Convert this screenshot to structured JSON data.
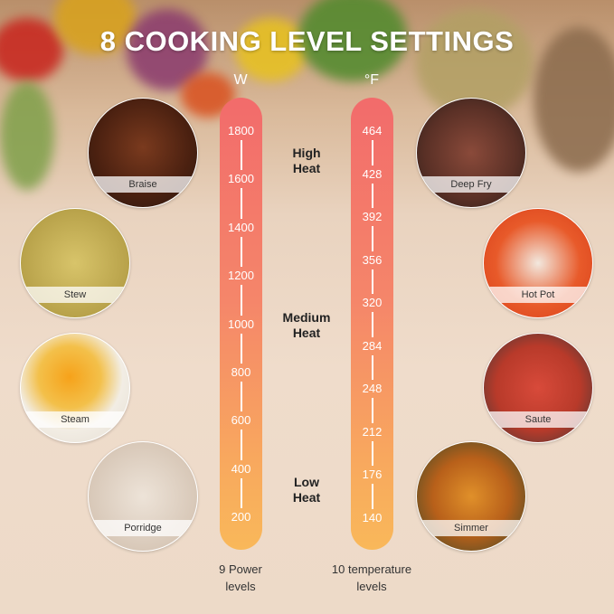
{
  "title": "8 COOKING LEVEL SETTINGS",
  "power_bar": {
    "unit": "W",
    "ticks": [
      "1800",
      "1600",
      "1400",
      "1200",
      "1000",
      "800",
      "600",
      "400",
      "200"
    ],
    "caption_line1": "9 Power",
    "caption_line2": "levels"
  },
  "temp_bar": {
    "unit": "°F",
    "ticks": [
      "464",
      "428",
      "392",
      "356",
      "320",
      "284",
      "248",
      "212",
      "176",
      "140"
    ],
    "caption_line1": "10 temperature",
    "caption_line2": "levels"
  },
  "heat_labels": [
    {
      "line1": "High",
      "line2": "Heat"
    },
    {
      "line1": "Medium",
      "line2": "Heat"
    },
    {
      "line1": "Low",
      "line2": "Heat"
    }
  ],
  "modes_left": [
    "Braise",
    "Stew",
    "Steam",
    "Porridge"
  ],
  "modes_right": [
    "Deep Fry",
    "Hot Pot",
    "Saute",
    "Simmer"
  ],
  "colors": {
    "bar_top": "#f26b6b",
    "bar_bottom": "#f9b85a"
  }
}
